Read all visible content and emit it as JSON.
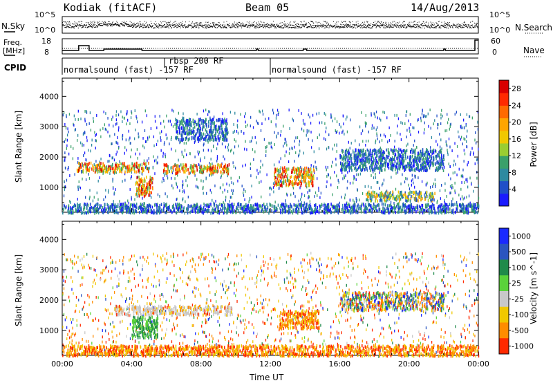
{
  "header": {
    "station": "Kodiak (fitACF)",
    "beam": "Beam 05",
    "date": "14/Aug/2013"
  },
  "top_panels": {
    "nsky_label": "N.Sky",
    "nsearch_label": "N.Search",
    "freq_label_line1": "Freq.",
    "freq_label_line2": "[MHz]",
    "nave_label": "Nave",
    "cpid_label": "CPID",
    "nsky_ticks_left": [
      "10^5",
      "10^0"
    ],
    "nsky_ticks_right": [
      "10^5",
      "10^0"
    ],
    "freq_ticks_left": [
      "18",
      "8"
    ],
    "nave_ticks_right": [
      "60",
      "0"
    ],
    "cpid_segments": [
      {
        "label": "normalsound (fast) -157 RF",
        "start_hr": 0,
        "end_hr": 12
      },
      {
        "label": "rbsp 200 RF",
        "start_hr": 5.7,
        "end_hr": 12
      },
      {
        "label": "normalsound (fast) -157 RF",
        "start_hr": 12,
        "end_hr": 24
      }
    ]
  },
  "chart_data": [
    {
      "type": "heatmap",
      "name": "power",
      "ylabel": "Slant Range [km]",
      "xlim": [
        0,
        24
      ],
      "ylim": [
        180,
        4600
      ],
      "yticks": [
        1000,
        2000,
        3000,
        4000
      ],
      "colorbar": {
        "label": "Power [dB]",
        "ticks": [
          4,
          8,
          12,
          16,
          20,
          24,
          28
        ],
        "range": [
          0,
          30
        ],
        "colors": [
          "#1a1aff",
          "#1f4fc8",
          "#2e8aa0",
          "#3aa06a",
          "#9acd32",
          "#f0c800",
          "#ffa500",
          "#ff6a00",
          "#ff2a00",
          "#d80000"
        ]
      },
      "features": [
        {
          "t": [
            0.8,
            5.0
          ],
          "range": [
            1550,
            1850
          ],
          "level": "high"
        },
        {
          "t": [
            4.2,
            5.2
          ],
          "range": [
            750,
            1400
          ],
          "level": "high"
        },
        {
          "t": [
            5.8,
            9.6
          ],
          "range": [
            1500,
            1800
          ],
          "level": "high"
        },
        {
          "t": [
            6.5,
            9.5
          ],
          "range": [
            2600,
            3300
          ],
          "level": "low"
        },
        {
          "t": [
            12.2,
            14.5
          ],
          "range": [
            1100,
            1700
          ],
          "level": "high"
        },
        {
          "t": [
            16.0,
            22.0
          ],
          "range": [
            1600,
            2300
          ],
          "level": "low"
        },
        {
          "t": [
            17.5,
            21.5
          ],
          "range": [
            600,
            900
          ],
          "level": "medium"
        },
        {
          "t": [
            0,
            24
          ],
          "range": [
            200,
            500
          ],
          "level": "low"
        }
      ]
    },
    {
      "type": "heatmap",
      "name": "velocity",
      "ylabel": "Slant Range [km]",
      "xlabel": "Time UT",
      "xlim": [
        0,
        24
      ],
      "ylim": [
        180,
        4600
      ],
      "xticks": [
        "00:00",
        "04:00",
        "08:00",
        "12:00",
        "16:00",
        "20:00",
        "00:00"
      ],
      "yticks": [
        1000,
        2000,
        3000,
        4000
      ],
      "colorbar": {
        "label": "Velocity [m s^-1]",
        "ticks": [
          "1000",
          "500",
          "100",
          "25",
          "-25",
          "-100",
          "-500",
          "-1000"
        ],
        "colors": [
          "#1a2aff",
          "#2a55c0",
          "#1f8a4a",
          "#5ad23a",
          "#c8c8c8",
          "#f0c800",
          "#ff8c00",
          "#ff2a00"
        ]
      },
      "features": [
        {
          "t": [
            3.0,
            9.8
          ],
          "range": [
            1550,
            1850
          ],
          "level": "ground"
        },
        {
          "t": [
            4.0,
            5.5
          ],
          "range": [
            800,
            1500
          ],
          "level": "positive"
        },
        {
          "t": [
            12.5,
            14.8
          ],
          "range": [
            1100,
            1700
          ],
          "level": "negative"
        },
        {
          "t": [
            16.0,
            22.0
          ],
          "range": [
            1700,
            2300
          ],
          "level": "mixed"
        },
        {
          "t": [
            0,
            24
          ],
          "range": [
            200,
            550
          ],
          "level": "negative"
        }
      ]
    }
  ]
}
